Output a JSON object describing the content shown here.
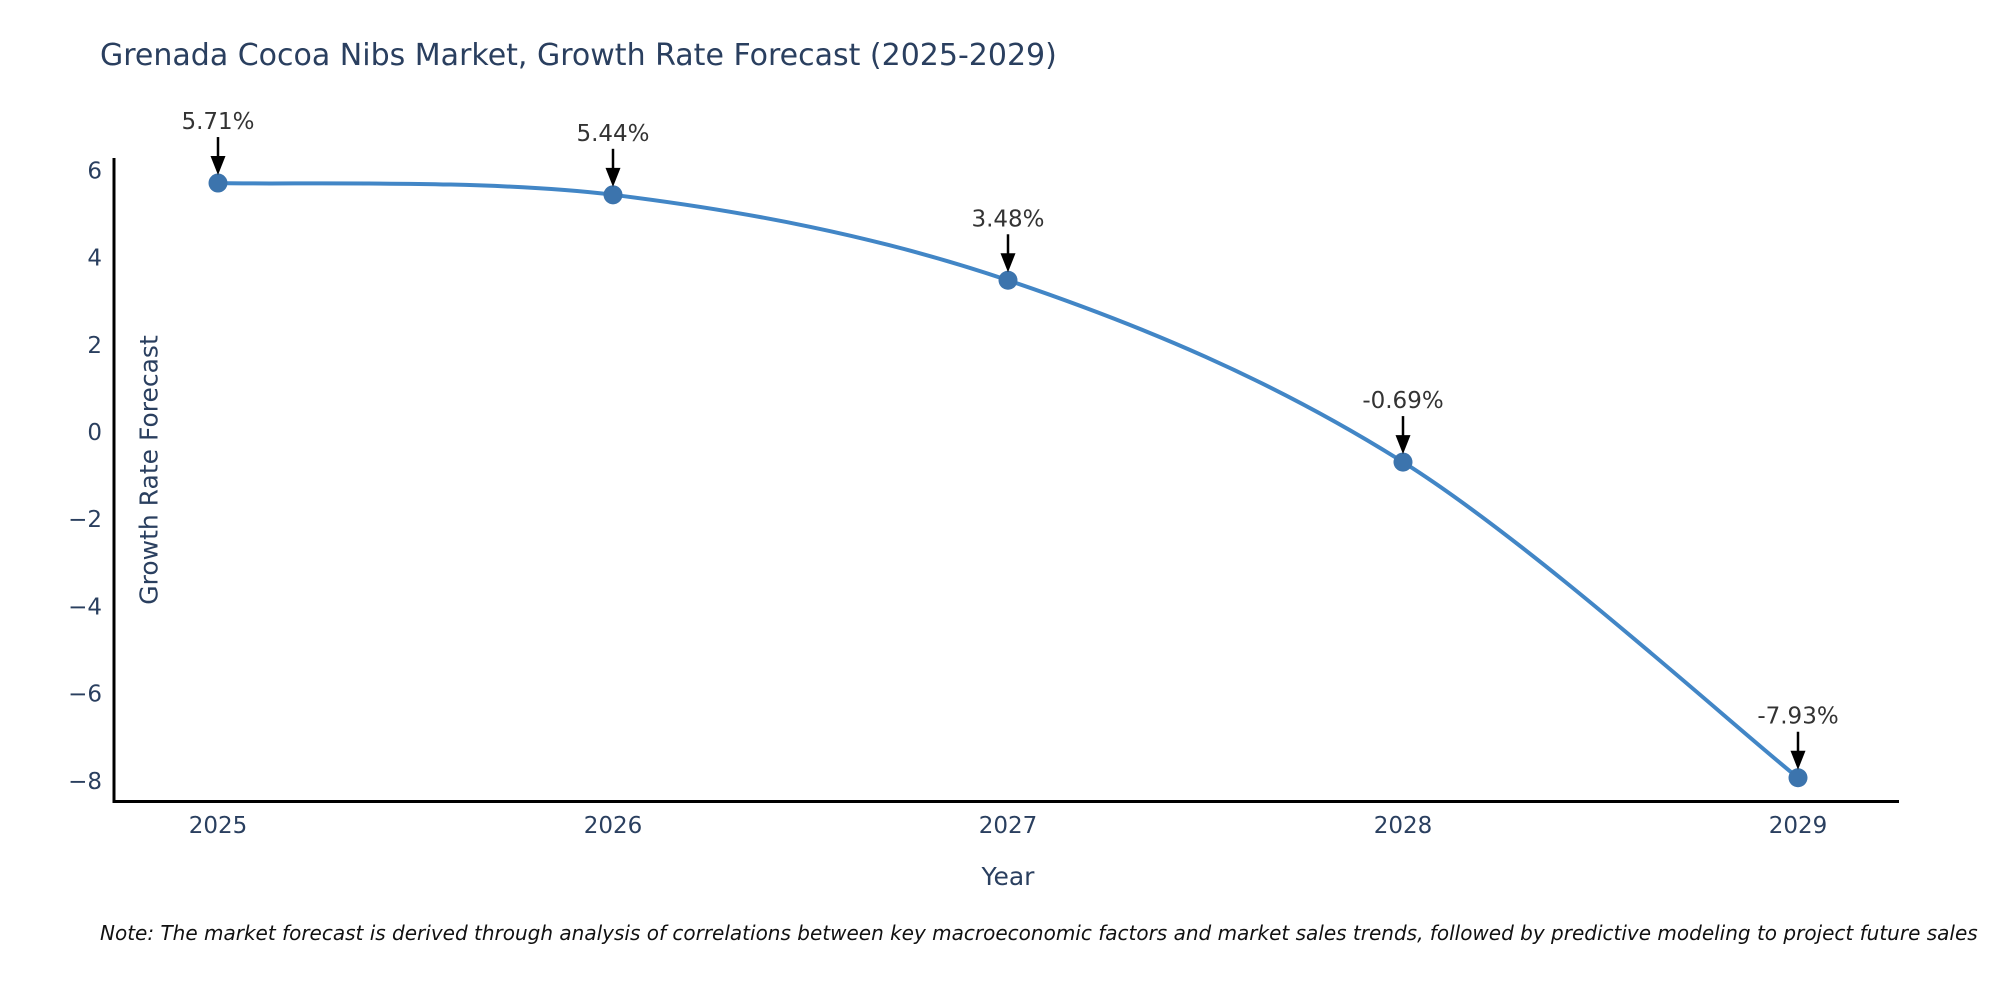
{
  "chart_data": {
    "type": "line",
    "title": "Grenada Cocoa Nibs Market, Growth Rate Forecast (2025-2029)",
    "xlabel": "Year",
    "ylabel": "Growth Rate Forecast",
    "categories": [
      "2025",
      "2026",
      "2027",
      "2028",
      "2029"
    ],
    "series": [
      {
        "name": "Growth Rate Forecast",
        "values": [
          5.71,
          5.44,
          3.48,
          -0.69,
          -7.93
        ],
        "point_labels": [
          "5.71%",
          "5.44%",
          "3.48%",
          "-0.69%",
          "-7.93%"
        ]
      }
    ],
    "y_ticks": [
      6,
      4,
      2,
      0,
      -2,
      -4,
      -6,
      -8
    ],
    "y_tick_labels": [
      "6",
      "4",
      "2",
      "0",
      "−2",
      "−4",
      "−6",
      "−8"
    ],
    "ylim": [
      -8.5,
      6.3
    ],
    "grid": false,
    "legend": "none",
    "curve": "smooth-spline",
    "colors": {
      "line": "#4286c6",
      "marker": "#3c74ad",
      "axis": "#000000",
      "arrow": "#000000",
      "title_text": "#2a3f5f",
      "tick_text": "#2a3f5f",
      "annotation_text": "#333333"
    }
  },
  "note": {
    "text": "Note: The market forecast is derived through analysis of correlations between key macroeconomic factors and market sales trends, followed by predictive modeling to project future sales"
  }
}
